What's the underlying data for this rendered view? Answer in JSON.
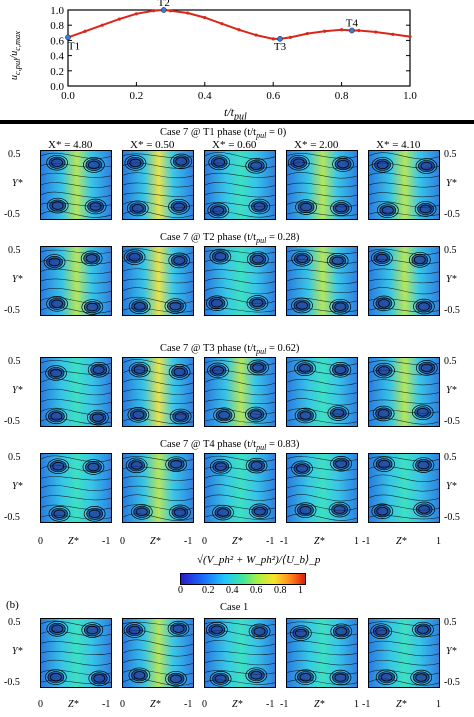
{
  "figure": {
    "top_plot": {
      "ylabel": "u_c,pul / u_c,max",
      "xlabel": "t/t_pul",
      "yticks": [
        "0.0",
        "0.2",
        "0.4",
        "0.6",
        "0.8",
        "1.0"
      ],
      "xticks": [
        "0.0",
        "0.2",
        "0.4",
        "0.6",
        "0.8",
        "1.0"
      ],
      "points": [
        "T1",
        "T2",
        "T3",
        "T4"
      ]
    },
    "case7": {
      "columns": [
        "X* = 4.80",
        "X* = 0.50",
        "X* = 0.60",
        "X* = 2.00",
        "X* = 4.10"
      ],
      "rows": [
        {
          "title": "Case 7  @ T1 phase (t/t",
          "sub": "pul",
          "tail": " = 0)"
        },
        {
          "title": "Case 7  @ T2 phase (t/t",
          "sub": "pul",
          "tail": " = 0.28)"
        },
        {
          "title": "Case 7  @ T3 phase (t/t",
          "sub": "pul",
          "tail": " = 0.62)"
        },
        {
          "title": "Case 7  @ T4 phase (t/t",
          "sub": "pul",
          "tail": " = 0.83)"
        }
      ],
      "y_left": [
        "0.5",
        "Y*",
        "-0.5"
      ],
      "y_right": [
        "0.5",
        "Y*",
        "-0.5"
      ],
      "zlabel": "Z*",
      "z_left_ticks": [
        "0",
        "-1"
      ],
      "z_right_ticks": [
        "-1",
        "0",
        "1"
      ]
    },
    "colorbar": {
      "ticks": [
        "0",
        "0.2",
        "0.4",
        "0.6",
        "0.8",
        "1"
      ],
      "label": "√(V_ph² + W_ph²)/⟨U_b⟩_p"
    },
    "case1": {
      "panel_label": "(b)",
      "title": "Case 1",
      "y_left": [
        "0.5",
        "Y*",
        "-0.5"
      ],
      "y_right": [
        "0.5",
        "Y*",
        "-0.5"
      ],
      "zlabel": "Z*",
      "z_left_ticks": [
        "0",
        "-1"
      ],
      "z_right_ticks": [
        "-1",
        "0",
        "1"
      ]
    }
  },
  "chart_data": {
    "type": "line",
    "x": [
      0.0,
      0.05,
      0.1,
      0.15,
      0.2,
      0.25,
      0.28,
      0.3,
      0.35,
      0.4,
      0.45,
      0.5,
      0.55,
      0.6,
      0.62,
      0.65,
      0.7,
      0.75,
      0.8,
      0.83,
      0.85,
      0.9,
      0.95,
      1.0
    ],
    "series": [
      {
        "values": [
          0.64,
          0.72,
          0.8,
          0.88,
          0.95,
          0.99,
          1.0,
          0.99,
          0.96,
          0.9,
          0.82,
          0.74,
          0.67,
          0.62,
          0.62,
          0.64,
          0.69,
          0.72,
          0.74,
          0.73,
          0.73,
          0.71,
          0.68,
          0.65
        ]
      }
    ],
    "markers": [
      {
        "label": "T1",
        "x": 0.0,
        "y": 0.64
      },
      {
        "label": "T2",
        "x": 0.28,
        "y": 1.0
      },
      {
        "label": "T3",
        "x": 0.62,
        "y": 0.62
      },
      {
        "label": "T4",
        "x": 0.83,
        "y": 0.73
      }
    ],
    "xlabel": "t/t_pul",
    "ylabel": "u_c,pul/u_c,max",
    "xlim": [
      0,
      1
    ],
    "ylim": [
      0,
      1
    ]
  }
}
